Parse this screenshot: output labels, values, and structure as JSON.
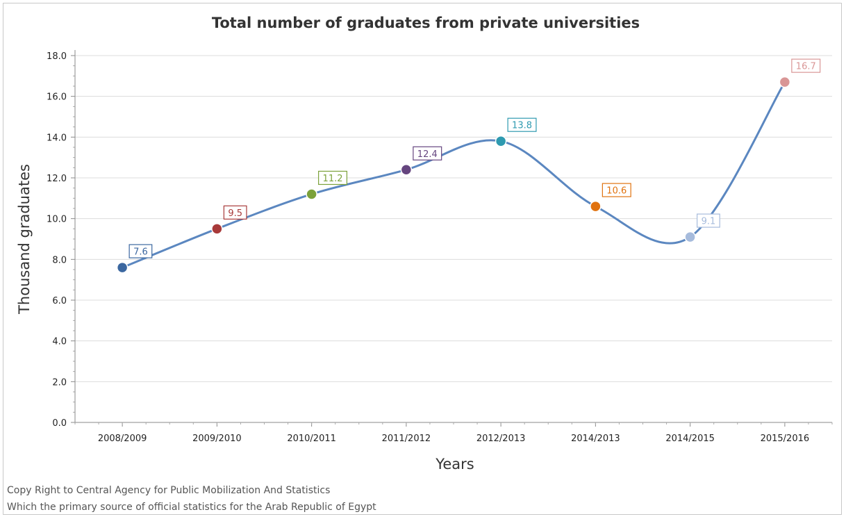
{
  "chart_data": {
    "type": "line",
    "title": "Total number of graduates from private universities",
    "xlabel": "Years",
    "ylabel": "Thousand graduates",
    "categories": [
      "2008/2009",
      "2009/2010",
      "2010/2011",
      "2011/2012",
      "2012/2013",
      "2014/2013",
      "2014/2015",
      "2015/2016"
    ],
    "values": [
      7.6,
      9.5,
      11.2,
      12.4,
      13.8,
      10.6,
      9.1,
      16.7
    ],
    "point_colors": [
      "#3b67a0",
      "#a83a3a",
      "#7ba13a",
      "#65457f",
      "#2e9ab0",
      "#e0720f",
      "#a6bbdc",
      "#d99696"
    ],
    "data_label_strings": [
      "7.6",
      "9.5",
      "11.2",
      "12.4",
      "13.8",
      "10.6",
      "9.1",
      "16.7"
    ],
    "line_color": "#5b87c0",
    "ylim": [
      0,
      18
    ],
    "yticks": [
      "0.0",
      "2.0",
      "4.0",
      "6.0",
      "8.0",
      "10.0",
      "12.0",
      "14.0",
      "16.0",
      "18.0"
    ],
    "grid": true,
    "smooth": true
  },
  "footer": {
    "line1": "Copy Right to Central Agency for Public Mobilization And Statistics",
    "line2": "Which the primary source of official statistics for the Arab Republic of Egypt"
  }
}
